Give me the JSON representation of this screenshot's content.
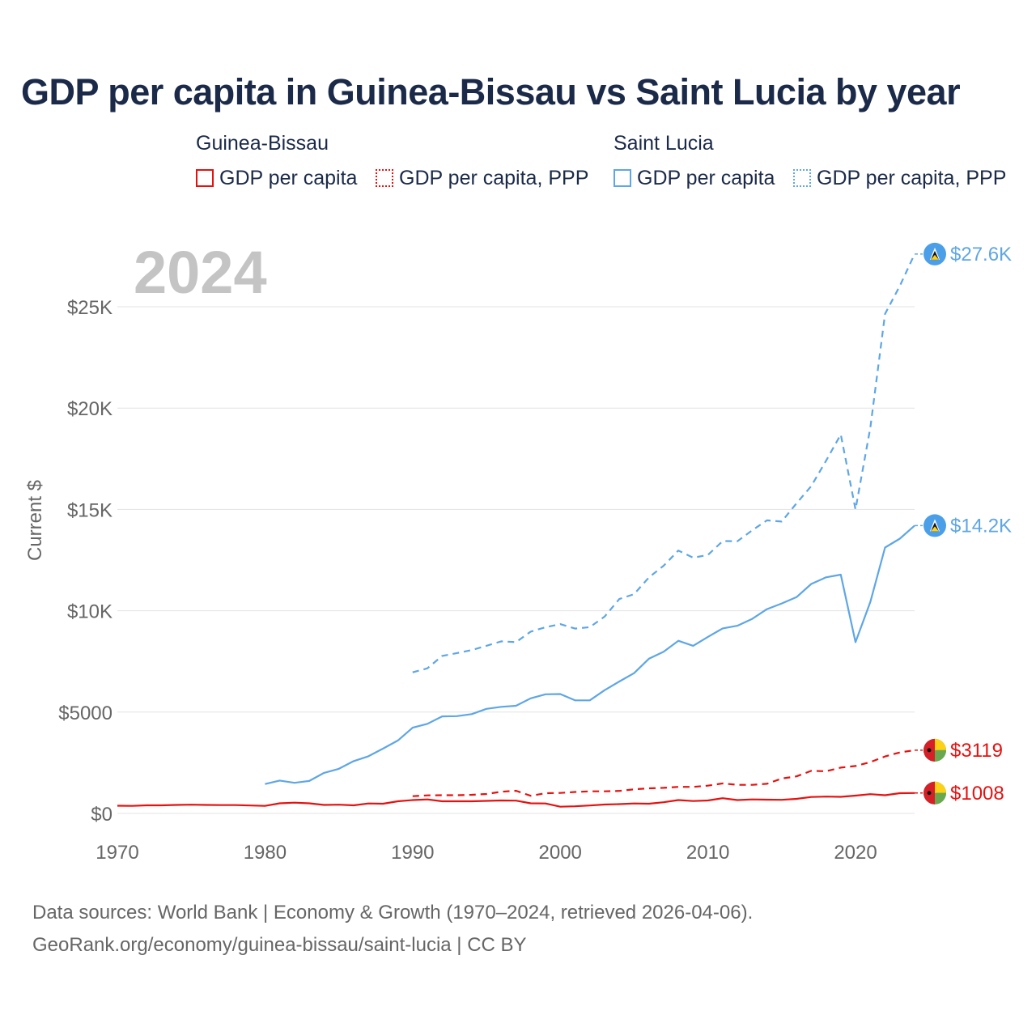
{
  "title": "GDP per capita in Guinea-Bissau vs Saint Lucia by year",
  "legend": {
    "groups": [
      {
        "label": "Guinea-Bissau",
        "items": [
          {
            "label": "GDP per capita",
            "style": "solid",
            "color": "#e8100e"
          },
          {
            "label": "GDP per capita, PPP",
            "style": "dotted",
            "color": "#e8100e"
          }
        ]
      },
      {
        "label": "Saint Lucia",
        "items": [
          {
            "label": "GDP per capita",
            "style": "solid",
            "color": "#5ea6e6"
          },
          {
            "label": "GDP per capita, PPP",
            "style": "dotted",
            "color": "#5ea6e6"
          }
        ]
      }
    ]
  },
  "year_watermark": "2024",
  "sources": {
    "line1": "Data sources: World Bank | Economy & Growth (1970–2024, retrieved 2026-04-06).",
    "line2": "GeoRank.org/economy/guinea-bissau/saint-lucia | CC BY"
  },
  "chart_data": {
    "type": "line",
    "title": "GDP per capita in Guinea-Bissau vs Saint Lucia by year",
    "xlabel": "",
    "ylabel": "Current $",
    "xlim": [
      1970,
      2024
    ],
    "ylim": [
      0,
      27600
    ],
    "x_ticks": [
      1970,
      1980,
      1990,
      2000,
      2010,
      2020
    ],
    "y_ticks": [
      {
        "value": 0,
        "label": "$0"
      },
      {
        "value": 5000,
        "label": "$5000"
      },
      {
        "value": 10000,
        "label": "$10K"
      },
      {
        "value": 15000,
        "label": "$15K"
      },
      {
        "value": 20000,
        "label": "$20K"
      },
      {
        "value": 25000,
        "label": "$25K"
      }
    ],
    "grid": true,
    "series": [
      {
        "name": "Guinea-Bissau GDP per capita",
        "country": "Guinea-Bissau",
        "color": "#e8100e",
        "dash": "solid",
        "end_label": "$1008",
        "x": [
          1970,
          1971,
          1972,
          1973,
          1974,
          1975,
          1976,
          1977,
          1978,
          1979,
          1980,
          1981,
          1982,
          1983,
          1984,
          1985,
          1986,
          1987,
          1988,
          1989,
          1990,
          1991,
          1992,
          1993,
          1994,
          1995,
          1996,
          1997,
          1998,
          1999,
          2000,
          2001,
          2002,
          2003,
          2004,
          2005,
          2006,
          2007,
          2008,
          2009,
          2010,
          2011,
          2012,
          2013,
          2014,
          2015,
          2016,
          2017,
          2018,
          2019,
          2020,
          2021,
          2022,
          2023,
          2024
        ],
        "values": [
          380,
          370,
          400,
          400,
          420,
          430,
          420,
          410,
          410,
          390,
          370,
          500,
          530,
          500,
          420,
          430,
          400,
          490,
          480,
          600,
          660,
          690,
          600,
          600,
          600,
          620,
          640,
          630,
          500,
          490,
          330,
          350,
          390,
          440,
          460,
          490,
          480,
          550,
          660,
          610,
          640,
          750,
          660,
          690,
          680,
          670,
          720,
          810,
          830,
          820,
          880,
          950,
          900,
          1000,
          1008
        ]
      },
      {
        "name": "Guinea-Bissau GDP per capita, PPP",
        "country": "Guinea-Bissau",
        "color": "#e8100e",
        "dash": "dashed",
        "end_label": "$3119",
        "x": [
          1990,
          1991,
          1992,
          1993,
          1994,
          1995,
          1996,
          1997,
          1998,
          1999,
          2000,
          2001,
          2002,
          2003,
          2004,
          2005,
          2006,
          2007,
          2008,
          2009,
          2010,
          2011,
          2012,
          2013,
          2014,
          2015,
          2016,
          2017,
          2018,
          2019,
          2020,
          2021,
          2022,
          2023,
          2024
        ],
        "values": [
          850,
          890,
          900,
          900,
          920,
          960,
          1070,
          1120,
          870,
          1000,
          1010,
          1060,
          1090,
          1090,
          1110,
          1190,
          1240,
          1260,
          1310,
          1310,
          1370,
          1480,
          1410,
          1410,
          1460,
          1720,
          1830,
          2100,
          2080,
          2260,
          2340,
          2530,
          2810,
          3010,
          3119
        ]
      },
      {
        "name": "Saint Lucia GDP per capita",
        "country": "Saint Lucia",
        "color": "#5ea6e6",
        "dash": "solid",
        "end_label": "$14.2K",
        "x": [
          1980,
          1981,
          1982,
          1983,
          1984,
          1985,
          1986,
          1987,
          1988,
          1989,
          1990,
          1991,
          1992,
          1993,
          1994,
          1995,
          1996,
          1997,
          1998,
          1999,
          2000,
          2001,
          2002,
          2003,
          2004,
          2005,
          2006,
          2007,
          2008,
          2009,
          2010,
          2011,
          2012,
          2013,
          2014,
          2015,
          2016,
          2017,
          2018,
          2019,
          2020,
          2021,
          2022,
          2023,
          2024
        ],
        "values": [
          1450,
          1620,
          1510,
          1600,
          2000,
          2200,
          2580,
          2820,
          3200,
          3600,
          4230,
          4420,
          4790,
          4800,
          4900,
          5160,
          5260,
          5310,
          5680,
          5880,
          5890,
          5580,
          5580,
          6080,
          6510,
          6920,
          7630,
          7980,
          8520,
          8270,
          8710,
          9130,
          9260,
          9600,
          10080,
          10360,
          10670,
          11320,
          11650,
          11780,
          8450,
          10430,
          13120,
          13560,
          14200
        ]
      },
      {
        "name": "Saint Lucia GDP per capita, PPP",
        "country": "Saint Lucia",
        "color": "#5ea6e6",
        "dash": "dashed",
        "end_label": "$27.6K",
        "x": [
          1990,
          1991,
          1992,
          1993,
          1994,
          1995,
          1996,
          1997,
          1998,
          1999,
          2000,
          2001,
          2002,
          2003,
          2004,
          2005,
          2006,
          2007,
          2008,
          2009,
          2010,
          2011,
          2012,
          2013,
          2014,
          2015,
          2016,
          2017,
          2018,
          2019,
          2020,
          2021,
          2022,
          2023,
          2024
        ],
        "values": [
          6960,
          7160,
          7770,
          7910,
          8060,
          8270,
          8490,
          8450,
          8970,
          9190,
          9340,
          9120,
          9190,
          9710,
          10580,
          10820,
          11640,
          12220,
          12970,
          12620,
          12750,
          13440,
          13430,
          13970,
          14460,
          14400,
          15300,
          16150,
          17400,
          18700,
          15000,
          19030,
          24650,
          26030,
          27600
        ]
      }
    ]
  }
}
